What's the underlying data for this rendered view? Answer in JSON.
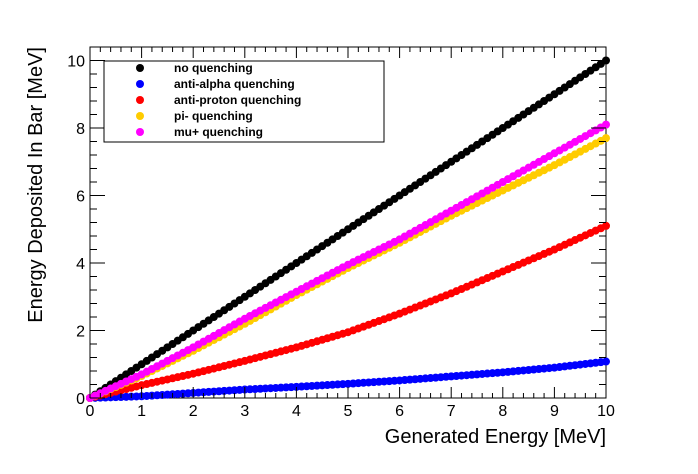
{
  "chart_data": {
    "type": "scatter",
    "title": "",
    "xlabel": "Generated Energy [MeV]",
    "ylabel": "Energy Deposited In Bar [MeV]",
    "xlim": [
      0,
      10
    ],
    "ylim": [
      0,
      10.4
    ],
    "x_ticks": [
      0,
      1,
      2,
      3,
      4,
      5,
      6,
      7,
      8,
      9,
      10
    ],
    "y_ticks": [
      0,
      2,
      4,
      6,
      8,
      10
    ],
    "grid": false,
    "legend_position": "top-left",
    "series": [
      {
        "name": "no quenching",
        "color": "#000000",
        "values_at_x": [
          0,
          1,
          2,
          3,
          4,
          5,
          6,
          7,
          8,
          9,
          10
        ],
        "y": [
          0,
          1.0,
          2.0,
          3.0,
          4.0,
          5.0,
          6.0,
          7.0,
          8.0,
          9.0,
          10.0
        ]
      },
      {
        "name": "anti-alpha quenching",
        "color": "#0000ff",
        "values_at_x": [
          0,
          1,
          2,
          3,
          4,
          5,
          6,
          7,
          8,
          9,
          10
        ],
        "y": [
          0,
          0.05,
          0.15,
          0.25,
          0.33,
          0.42,
          0.52,
          0.64,
          0.76,
          0.9,
          1.08
        ]
      },
      {
        "name": "anti-proton quenching",
        "color": "#ff0000",
        "values_at_x": [
          0,
          1,
          2,
          3,
          4,
          5,
          6,
          7,
          8,
          9,
          10
        ],
        "y": [
          0,
          0.38,
          0.72,
          1.1,
          1.5,
          1.95,
          2.5,
          3.1,
          3.75,
          4.4,
          5.1
        ]
      },
      {
        "name": "pi- quenching",
        "color": "#ffcc00",
        "values_at_x": [
          0,
          1,
          2,
          3,
          4,
          5,
          6,
          7,
          8,
          9,
          10
        ],
        "y": [
          0,
          0.65,
          1.4,
          2.2,
          3.05,
          3.85,
          4.6,
          5.4,
          6.15,
          6.9,
          7.7
        ]
      },
      {
        "name": "mu+ quenching",
        "color": "#ff00ff",
        "values_at_x": [
          0,
          1,
          2,
          3,
          4,
          5,
          6,
          7,
          8,
          9,
          10
        ],
        "y": [
          0,
          0.7,
          1.5,
          2.35,
          3.15,
          3.95,
          4.7,
          5.55,
          6.4,
          7.25,
          8.1
        ]
      }
    ]
  }
}
